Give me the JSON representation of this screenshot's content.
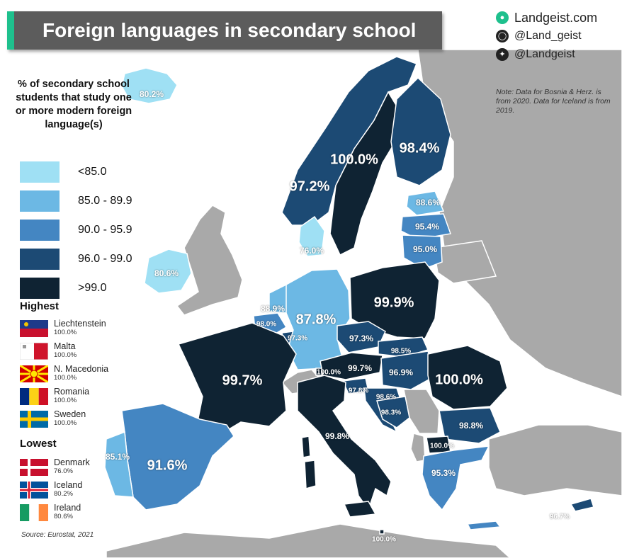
{
  "title": "Foreign languages in secondary school",
  "brand": {
    "site": "Landgeist.com",
    "instagram": "@Land_geist",
    "twitter": "@Landgeist"
  },
  "note": "Note: Data for Bosnia & Herz. is from 2020. Data for Iceland is from 2019.",
  "legend": {
    "title": "% of secondary school students that study one or more modern foreign language(s)",
    "bins": [
      {
        "label": "<85.0",
        "color": "#9fe0f4"
      },
      {
        "label": "85.0 - 89.9",
        "color": "#6cb8e4"
      },
      {
        "label": "90.0 - 95.9",
        "color": "#4486c2"
      },
      {
        "label": "96.0 - 99.0",
        "color": "#1c4a74"
      },
      {
        "label": ">99.0",
        "color": "#0f2333"
      }
    ]
  },
  "highest": {
    "heading": "Highest",
    "items": [
      {
        "country": "Liechtenstein",
        "value": "100.0%"
      },
      {
        "country": "Malta",
        "value": "100.0%"
      },
      {
        "country": "N. Macedonia",
        "value": "100.0%"
      },
      {
        "country": "Romania",
        "value": "100.0%"
      },
      {
        "country": "Sweden",
        "value": "100.0%"
      }
    ]
  },
  "lowest": {
    "heading": "Lowest",
    "items": [
      {
        "country": "Denmark",
        "value": "76.0%"
      },
      {
        "country": "Iceland",
        "value": "80.2%"
      },
      {
        "country": "Ireland",
        "value": "80.6%"
      }
    ]
  },
  "source": "Source: Eurostat, 2021",
  "map_values": [
    {
      "id": "iceland",
      "value": "80.2%",
      "size": "m"
    },
    {
      "id": "norway",
      "value": "97.2%",
      "size": "l"
    },
    {
      "id": "sweden",
      "value": "100.0%",
      "size": "l"
    },
    {
      "id": "finland",
      "value": "98.4%",
      "size": "l"
    },
    {
      "id": "estonia",
      "value": "88.6%",
      "size": "m"
    },
    {
      "id": "latvia",
      "value": "95.4%",
      "size": "m"
    },
    {
      "id": "lithuania",
      "value": "95.0%",
      "size": "m"
    },
    {
      "id": "denmark",
      "value": "76.0%",
      "size": "m"
    },
    {
      "id": "ireland",
      "value": "80.6%",
      "size": "m"
    },
    {
      "id": "netherlands",
      "value": "88.9%",
      "size": "m"
    },
    {
      "id": "belgium",
      "value": "98.0%",
      "size": "s"
    },
    {
      "id": "luxembourg",
      "value": "97.3%",
      "size": "s"
    },
    {
      "id": "germany",
      "value": "87.8%",
      "size": "l"
    },
    {
      "id": "poland",
      "value": "99.9%",
      "size": "l"
    },
    {
      "id": "czechia",
      "value": "97.3%",
      "size": "m"
    },
    {
      "id": "slovakia",
      "value": "98.5%",
      "size": "s"
    },
    {
      "id": "liechtenstein",
      "value": "100.0%",
      "size": "s"
    },
    {
      "id": "austria",
      "value": "99.7%",
      "size": "m"
    },
    {
      "id": "hungary",
      "value": "96.9%",
      "size": "m"
    },
    {
      "id": "slovenia",
      "value": "97.8%",
      "size": "s"
    },
    {
      "id": "croatia",
      "value": "98.6%",
      "size": "s"
    },
    {
      "id": "bosnia",
      "value": "98.3%",
      "size": "s"
    },
    {
      "id": "romania",
      "value": "100.0%",
      "size": "l"
    },
    {
      "id": "bulgaria",
      "value": "98.8%",
      "size": "m"
    },
    {
      "id": "north-macedonia",
      "value": "100.0%",
      "size": "s"
    },
    {
      "id": "greece",
      "value": "95.3%",
      "size": "m"
    },
    {
      "id": "france",
      "value": "99.7%",
      "size": "l"
    },
    {
      "id": "italy",
      "value": "99.8%",
      "size": "m"
    },
    {
      "id": "spain",
      "value": "91.6%",
      "size": "l"
    },
    {
      "id": "portugal",
      "value": "85.1%",
      "size": "m"
    },
    {
      "id": "cyprus",
      "value": "96.7%",
      "size": "s"
    },
    {
      "id": "malta",
      "value": "100.0%",
      "size": "s"
    }
  ]
}
